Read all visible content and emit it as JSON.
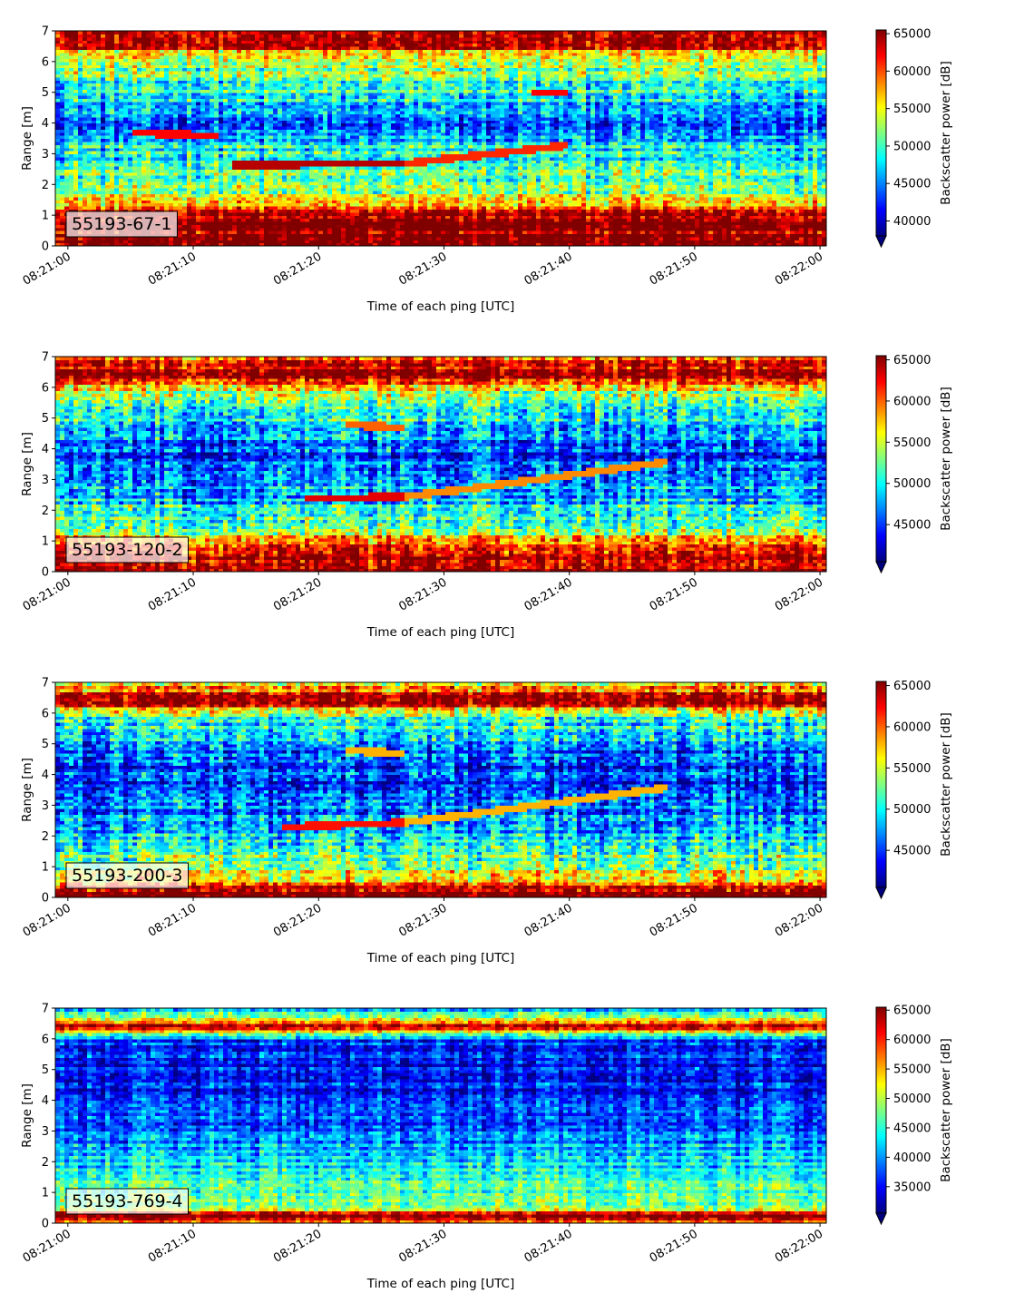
{
  "chart_data": [
    {
      "type": "heatmap",
      "label": "55193-67-1",
      "xlabel": "Time of each ping [UTC]",
      "ylabel": "Range [m]",
      "x_ticks": [
        "08:21:00",
        "08:21:10",
        "08:21:20",
        "08:21:30",
        "08:21:40",
        "08:21:50",
        "08:22:00"
      ],
      "y_ticks": [
        "0",
        "1",
        "2",
        "3",
        "4",
        "5",
        "6",
        "7"
      ],
      "ylim": [
        0,
        7
      ],
      "colorbar_label": "Backscatter power [dB]",
      "colorbar_ticks": [
        "40000",
        "45000",
        "50000",
        "55000",
        "60000",
        "65000"
      ],
      "clim": [
        38000,
        65500
      ],
      "colormap": "jet",
      "profile": [
        {
          "range": 0.2,
          "value": 65500
        },
        {
          "range": 0.7,
          "value": 65500
        },
        {
          "range": 1.1,
          "value": 63000
        },
        {
          "range": 1.5,
          "value": 54000
        },
        {
          "range": 2.2,
          "value": 51000
        },
        {
          "range": 3.0,
          "value": 49000
        },
        {
          "range": 4.0,
          "value": 44000
        },
        {
          "range": 5.0,
          "value": 48000
        },
        {
          "range": 5.8,
          "value": 52000
        },
        {
          "range": 6.3,
          "value": 55000
        },
        {
          "range": 6.5,
          "value": 65500
        },
        {
          "range": 7.0,
          "value": 65500
        }
      ],
      "features": [
        {
          "t_start": 13,
          "r_start": 2.65,
          "t_end": 27,
          "r_end": 2.7,
          "value": 64000
        },
        {
          "t_start": 27,
          "r_start": 2.7,
          "t_end": 40,
          "r_end": 3.3,
          "value": 61000
        },
        {
          "t_start": 5,
          "r_start": 3.7,
          "t_end": 12,
          "r_end": 3.6,
          "value": 62000
        },
        {
          "t_start": 37,
          "r_start": 5.0,
          "t_end": 40,
          "r_end": 5.0,
          "value": 62000
        }
      ]
    },
    {
      "type": "heatmap",
      "label": "55193-120-2",
      "xlabel": "Time of each ping [UTC]",
      "ylabel": "Range [m]",
      "x_ticks": [
        "08:21:00",
        "08:21:10",
        "08:21:20",
        "08:21:30",
        "08:21:40",
        "08:21:50",
        "08:22:00"
      ],
      "y_ticks": [
        "0",
        "1",
        "2",
        "3",
        "4",
        "5",
        "6",
        "7"
      ],
      "ylim": [
        0,
        7
      ],
      "colorbar_label": "Backscatter power [dB]",
      "colorbar_ticks": [
        "45000",
        "50000",
        "55000",
        "60000",
        "65000"
      ],
      "clim": [
        40500,
        65500
      ],
      "colormap": "jet",
      "profile": [
        {
          "range": 0.2,
          "value": 65500
        },
        {
          "range": 0.6,
          "value": 64000
        },
        {
          "range": 1.0,
          "value": 58000
        },
        {
          "range": 1.6,
          "value": 52000
        },
        {
          "range": 2.5,
          "value": 48000
        },
        {
          "range": 4.0,
          "value": 45000
        },
        {
          "range": 5.2,
          "value": 50000
        },
        {
          "range": 5.9,
          "value": 55000
        },
        {
          "range": 6.4,
          "value": 65500
        },
        {
          "range": 6.8,
          "value": 62000
        },
        {
          "range": 7.0,
          "value": 60000
        }
      ],
      "features": [
        {
          "t_start": 19,
          "r_start": 2.4,
          "t_end": 27,
          "r_end": 2.45,
          "value": 63000
        },
        {
          "t_start": 27,
          "r_start": 2.45,
          "t_end": 48,
          "r_end": 3.6,
          "value": 59000
        },
        {
          "t_start": 22,
          "r_start": 4.8,
          "t_end": 27,
          "r_end": 4.7,
          "value": 60000
        }
      ]
    },
    {
      "type": "heatmap",
      "label": "55193-200-3",
      "xlabel": "Time of each ping [UTC]",
      "ylabel": "Range [m]",
      "x_ticks": [
        "08:21:00",
        "08:21:10",
        "08:21:20",
        "08:21:30",
        "08:21:40",
        "08:21:50",
        "08:22:00"
      ],
      "y_ticks": [
        "0",
        "1",
        "2",
        "3",
        "4",
        "5",
        "6",
        "7"
      ],
      "ylim": [
        0,
        7
      ],
      "colorbar_label": "Backscatter power [dB]",
      "colorbar_ticks": [
        "45000",
        "50000",
        "55000",
        "60000",
        "65000"
      ],
      "clim": [
        40500,
        65500
      ],
      "colormap": "jet",
      "profile": [
        {
          "range": 0.2,
          "value": 65500
        },
        {
          "range": 0.45,
          "value": 60000
        },
        {
          "range": 0.8,
          "value": 56000
        },
        {
          "range": 1.5,
          "value": 51000
        },
        {
          "range": 2.5,
          "value": 47000
        },
        {
          "range": 4.0,
          "value": 45000
        },
        {
          "range": 5.0,
          "value": 47000
        },
        {
          "range": 5.9,
          "value": 52000
        },
        {
          "range": 6.4,
          "value": 65500
        },
        {
          "range": 6.8,
          "value": 60000
        },
        {
          "range": 7.0,
          "value": 57000
        }
      ],
      "features": [
        {
          "t_start": 17,
          "r_start": 2.3,
          "t_end": 27,
          "r_end": 2.45,
          "value": 62000
        },
        {
          "t_start": 27,
          "r_start": 2.45,
          "t_end": 48,
          "r_end": 3.6,
          "value": 58000
        },
        {
          "t_start": 22,
          "r_start": 4.8,
          "t_end": 27,
          "r_end": 4.7,
          "value": 58000
        }
      ]
    },
    {
      "type": "heatmap",
      "label": "55193-769-4",
      "xlabel": "Time of each ping [UTC]",
      "ylabel": "Range [m]",
      "x_ticks": [
        "08:21:00",
        "08:21:10",
        "08:21:20",
        "08:21:30",
        "08:21:40",
        "08:21:50",
        "08:22:00"
      ],
      "y_ticks": [
        "0",
        "1",
        "2",
        "3",
        "4",
        "5",
        "6",
        "7"
      ],
      "ylim": [
        0,
        7
      ],
      "colorbar_label": "Backscatter power [dB]",
      "colorbar_ticks": [
        "35000",
        "40000",
        "45000",
        "50000",
        "55000",
        "60000",
        "65000"
      ],
      "clim": [
        30500,
        65500
      ],
      "colormap": "jet",
      "profile": [
        {
          "range": 0.05,
          "value": 56000
        },
        {
          "range": 0.25,
          "value": 65500
        },
        {
          "range": 0.5,
          "value": 50000
        },
        {
          "range": 1.0,
          "value": 46000
        },
        {
          "range": 2.0,
          "value": 42000
        },
        {
          "range": 3.0,
          "value": 39000
        },
        {
          "range": 4.0,
          "value": 36000
        },
        {
          "range": 5.0,
          "value": 35000
        },
        {
          "range": 6.0,
          "value": 37000
        },
        {
          "range": 6.25,
          "value": 52000
        },
        {
          "range": 6.4,
          "value": 64000
        },
        {
          "range": 6.7,
          "value": 50000
        },
        {
          "range": 7.0,
          "value": 42000
        }
      ],
      "features": []
    }
  ]
}
